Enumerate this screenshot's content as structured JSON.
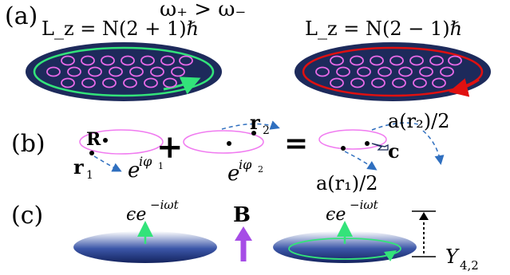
{
  "top_condition": "ω₊ > ω₋",
  "panel_a": {
    "label": "(a)",
    "left_momentum": "L_z = N(2 + 1)ℏ",
    "right_momentum": "L_z = N(2 − 1)ℏ",
    "colors": {
      "disk": "#1d2a5b",
      "vortex": "#e86ae8",
      "left_ring": "#33e37a",
      "right_ring": "#e01010"
    }
  },
  "panel_b": {
    "label": "(b)",
    "center_label": "R",
    "r1_label": "r",
    "r1_sub": "1",
    "r2_label": "r",
    "r2_sub": "2",
    "phase1_base": "e",
    "phase1_exp": "iφ",
    "phase1_sub": "1",
    "phase2_base": "e",
    "phase2_exp": "iφ",
    "phase2_sub": "2",
    "plus": "+",
    "equals": "=",
    "a_r2": "a(r₂)/2",
    "a_r1": "a(r₁)/2",
    "c_label": "c",
    "colors": {
      "ring": "#f07af0",
      "dash": "#2f6fbf"
    }
  },
  "panel_c": {
    "label": "(c)",
    "field_left_base": "ϵe",
    "field_left_exp": "−iωt",
    "field_right_base": "ϵe",
    "field_right_exp": "−iωt",
    "b_label": "B",
    "y_label": "Y",
    "y_sub": "4,2",
    "colors": {
      "disk": "#1f3a8c",
      "arrow": "#33e37a",
      "b_arrow": "#a64de6"
    }
  }
}
